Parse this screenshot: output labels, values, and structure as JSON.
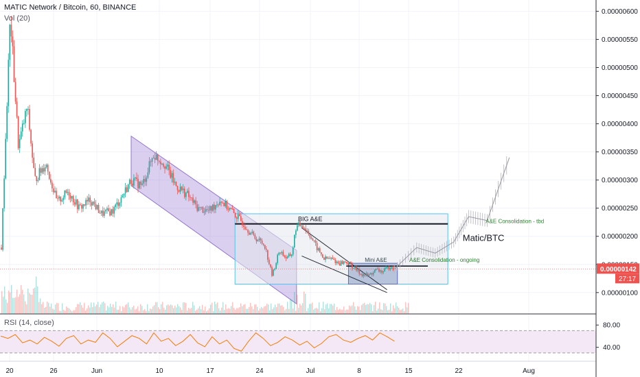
{
  "header": {
    "symbol_line": "MATIC Network / Bitcoin, 60, BINANCE",
    "volume_line": "Vol (20)",
    "rsi_line": "RSI (14, close)"
  },
  "chart_data": [
    {
      "type": "candlestick",
      "title": "MATIC Network / Bitcoin, 60, BINANCE",
      "price_axis": {
        "ticks": [
          "0.00000100",
          "0.00000150",
          "0.00000200",
          "0.00000250",
          "0.00000300",
          "0.00000350",
          "0.00000400",
          "0.00000450",
          "0.00000500",
          "0.00000550",
          "0.00000600"
        ],
        "range": [
          6.2e-07,
          6.2e-06
        ]
      },
      "time_axis": {
        "ticks": [
          "20",
          "26",
          "Jun",
          "10",
          "17",
          "24",
          "Jul",
          "8",
          "15",
          "22",
          "Aug"
        ]
      },
      "last_price": {
        "value": "0.00000142",
        "countdown": "27:17",
        "color": "#ef5350"
      },
      "price_path": [
        [
          0,
          1.8e-06
        ],
        [
          1.2,
          5.9e-06
        ],
        [
          2.3,
          3.6e-06
        ],
        [
          3.5,
          4.3e-06
        ],
        [
          4.5,
          3e-06
        ],
        [
          6.0,
          3.3e-06
        ],
        [
          7.5,
          2.6e-06
        ],
        [
          9.0,
          2.8e-06
        ],
        [
          10.5,
          2.5e-06
        ],
        [
          12.0,
          2.65e-06
        ],
        [
          13.5,
          2.4e-06
        ],
        [
          15.0,
          2.45e-06
        ],
        [
          16.0,
          2.65e-06
        ],
        [
          17.5,
          3e-06
        ],
        [
          19.0,
          2.9e-06
        ],
        [
          20.5,
          3.45e-06
        ],
        [
          22.0,
          3.3e-06
        ],
        [
          23.5,
          2.9e-06
        ],
        [
          25.0,
          2.75e-06
        ],
        [
          26.5,
          2.5e-06
        ],
        [
          28.0,
          2.45e-06
        ],
        [
          29.5,
          2.65e-06
        ],
        [
          31.0,
          2.45e-06
        ],
        [
          32.5,
          2.25e-06
        ],
        [
          34.0,
          2e-06
        ],
        [
          35.5,
          1.85e-06
        ],
        [
          36.5,
          1.3e-06
        ],
        [
          37.5,
          1.75e-06
        ],
        [
          38.5,
          1.6e-06
        ],
        [
          39.2,
          1.7e-06
        ],
        [
          39.7,
          2.15e-06
        ],
        [
          40.5,
          2.22e-06
        ],
        [
          41.5,
          2.05e-06
        ],
        [
          42.5,
          1.8e-06
        ],
        [
          43.5,
          1.6e-06
        ],
        [
          44.5,
          1.6e-06
        ],
        [
          45.5,
          1.52e-06
        ],
        [
          46.5,
          1.55e-06
        ],
        [
          47.5,
          1.45e-06
        ],
        [
          48.5,
          1.33e-06
        ],
        [
          49.5,
          1.3e-06
        ],
        [
          50.5,
          1.4e-06
        ],
        [
          51.5,
          1.37e-06
        ],
        [
          52.5,
          1.48e-06
        ],
        [
          53.0,
          1.42e-06
        ]
      ],
      "projection": [
        [
          53.0,
          1.42e-06
        ],
        [
          56.0,
          1.8e-06
        ],
        [
          58.5,
          1.7e-06
        ],
        [
          61.0,
          1.9e-06
        ],
        [
          63.0,
          2.35e-06
        ],
        [
          65.5,
          2.28e-06
        ],
        [
          68.5,
          3.4e-06
        ]
      ],
      "annotations": {
        "big_ae_label": "BIG A&E",
        "big_ae_level": 2.22e-06,
        "mini_ae_label": "Mini A&E",
        "mini_ae_level": 1.47e-06,
        "consolidation_tbd_label": "A&E Consolidation - tbd",
        "consolidation_ongoing_label": "A&E Consolidation - ongoing",
        "symbol_label": "Matic/BTC",
        "channel": {
          "from_day": 17.5,
          "to_day": 39.8,
          "upper_start": 3.78e-06,
          "upper_end": 1.75e-06,
          "lower_start": 2.9e-06,
          "lower_end": 8e-07
        },
        "big_box": {
          "from_day": 31.5,
          "to_day": 60.2,
          "top": 2.4e-06,
          "bottom": 1.15e-06
        },
        "mini_box": {
          "from_day": 46.8,
          "to_day": 53.4,
          "top": 1.52e-06,
          "bottom": 1.15e-06
        },
        "wedge": {
          "from_day": 40.5,
          "to_day": 52.0,
          "upper_start": 2.15e-06,
          "upper_end": 1.05e-06,
          "lower_start": 1.65e-06,
          "lower_end": 1e-06
        }
      },
      "colors": {
        "up": "#26a69a",
        "down": "#ef5350",
        "channel": "#9575cd",
        "box": "#b2ebf2",
        "consolidation_text": "#26a69a",
        "projection": "#b2b5be"
      }
    },
    {
      "type": "line",
      "title": "RSI (14, close)",
      "y_axis": {
        "ticks": [
          "40.00",
          "80.00"
        ],
        "band": [
          30,
          70
        ]
      },
      "values": [
        60,
        56,
        63,
        48,
        53,
        46,
        58,
        51,
        42,
        56,
        61,
        46,
        53,
        49,
        66,
        56,
        41,
        51,
        61,
        56,
        46,
        66,
        51,
        56,
        43,
        51,
        63,
        48,
        41,
        59,
        46,
        53,
        38,
        33,
        51,
        66,
        56,
        43,
        49,
        59,
        53,
        44,
        51,
        39,
        47,
        59,
        63,
        53,
        49,
        56,
        61,
        53,
        66,
        59,
        51
      ],
      "colors": {
        "line": "#f57c00",
        "band": "#e1bee7"
      }
    }
  ]
}
